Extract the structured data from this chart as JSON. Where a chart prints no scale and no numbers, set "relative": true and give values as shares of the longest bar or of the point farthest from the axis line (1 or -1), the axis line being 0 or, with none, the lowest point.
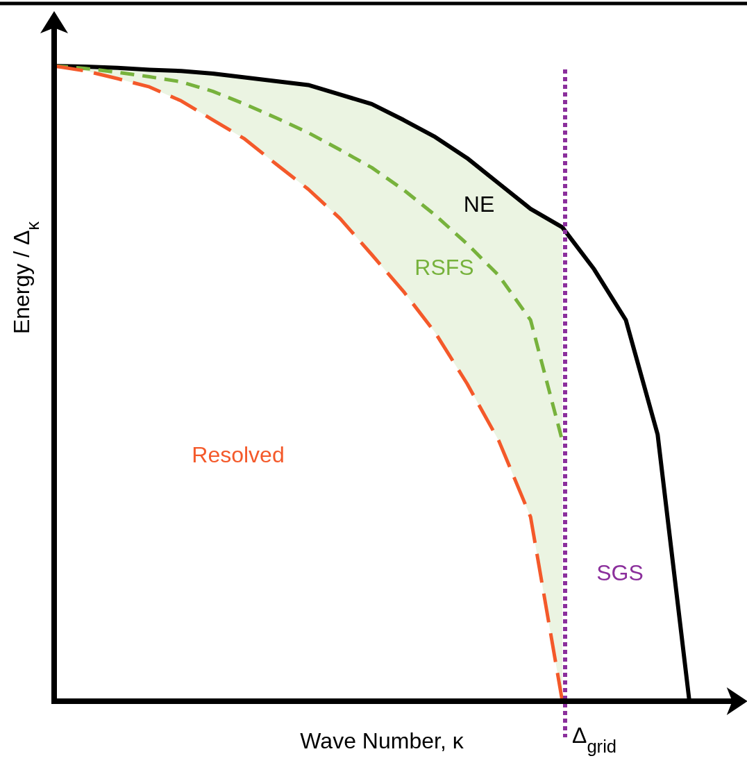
{
  "chart_data": {
    "type": "line",
    "relative": true,
    "xlabel": "Wave Number, κ",
    "ylabel": "Energy / Δ$_{κ}$",
    "categories": [
      null,
      null,
      null,
      null,
      null,
      null,
      null,
      null,
      null,
      null,
      null,
      null,
      null,
      null,
      null,
      null,
      null,
      null,
      null,
      null,
      null,
      null
    ],
    "series": [
      {
        "name": "NE",
        "color": "#000000",
        "line_style": "solid",
        "values": [
          1,
          0.999,
          0.997,
          0.994,
          0.992,
          0.988,
          0.982,
          0.976,
          0.97,
          0.955,
          0.94,
          0.915,
          0.888,
          0.855,
          0.815,
          0.775,
          0.746,
          0.68,
          0.6,
          0.42,
          0,
          null
        ]
      },
      {
        "name": "RSFS",
        "color": "#77b23c",
        "line_style": "dashed",
        "values": [
          1,
          0.996,
          0.99,
          0.983,
          0.975,
          0.96,
          0.94,
          0.918,
          0.895,
          0.868,
          0.84,
          0.805,
          0.765,
          0.72,
          0.67,
          0.6,
          0.41,
          null,
          null,
          null,
          null,
          null
        ],
        "lower": [
          1,
          0.992,
          0.98,
          0.967,
          0.945,
          0.915,
          0.885,
          0.845,
          0.806,
          0.76,
          0.703,
          0.645,
          0.58,
          0.5,
          0.41,
          0.29,
          0,
          null,
          null,
          null,
          null,
          null
        ],
        "upper": [
          1,
          0.999,
          0.997,
          0.994,
          0.992,
          0.988,
          0.982,
          0.976,
          0.97,
          0.955,
          0.94,
          0.915,
          0.888,
          0.855,
          0.815,
          0.775,
          0.746,
          null,
          null,
          null,
          null,
          null
        ]
      },
      {
        "name": "Resolved",
        "color": "#f4592a",
        "line_style": "longdash",
        "values": [
          1,
          0.992,
          0.98,
          0.967,
          0.945,
          0.915,
          0.885,
          0.845,
          0.806,
          0.76,
          0.703,
          0.645,
          0.58,
          0.5,
          0.41,
          0.29,
          0,
          null,
          null,
          null,
          null,
          null
        ]
      }
    ],
    "ref_lines": [
      {
        "axis": "x",
        "label": "Δ$_{grid}$",
        "color": "#8b2f9c",
        "line_style": "dotted"
      }
    ],
    "annotations": [
      "SGS"
    ]
  }
}
